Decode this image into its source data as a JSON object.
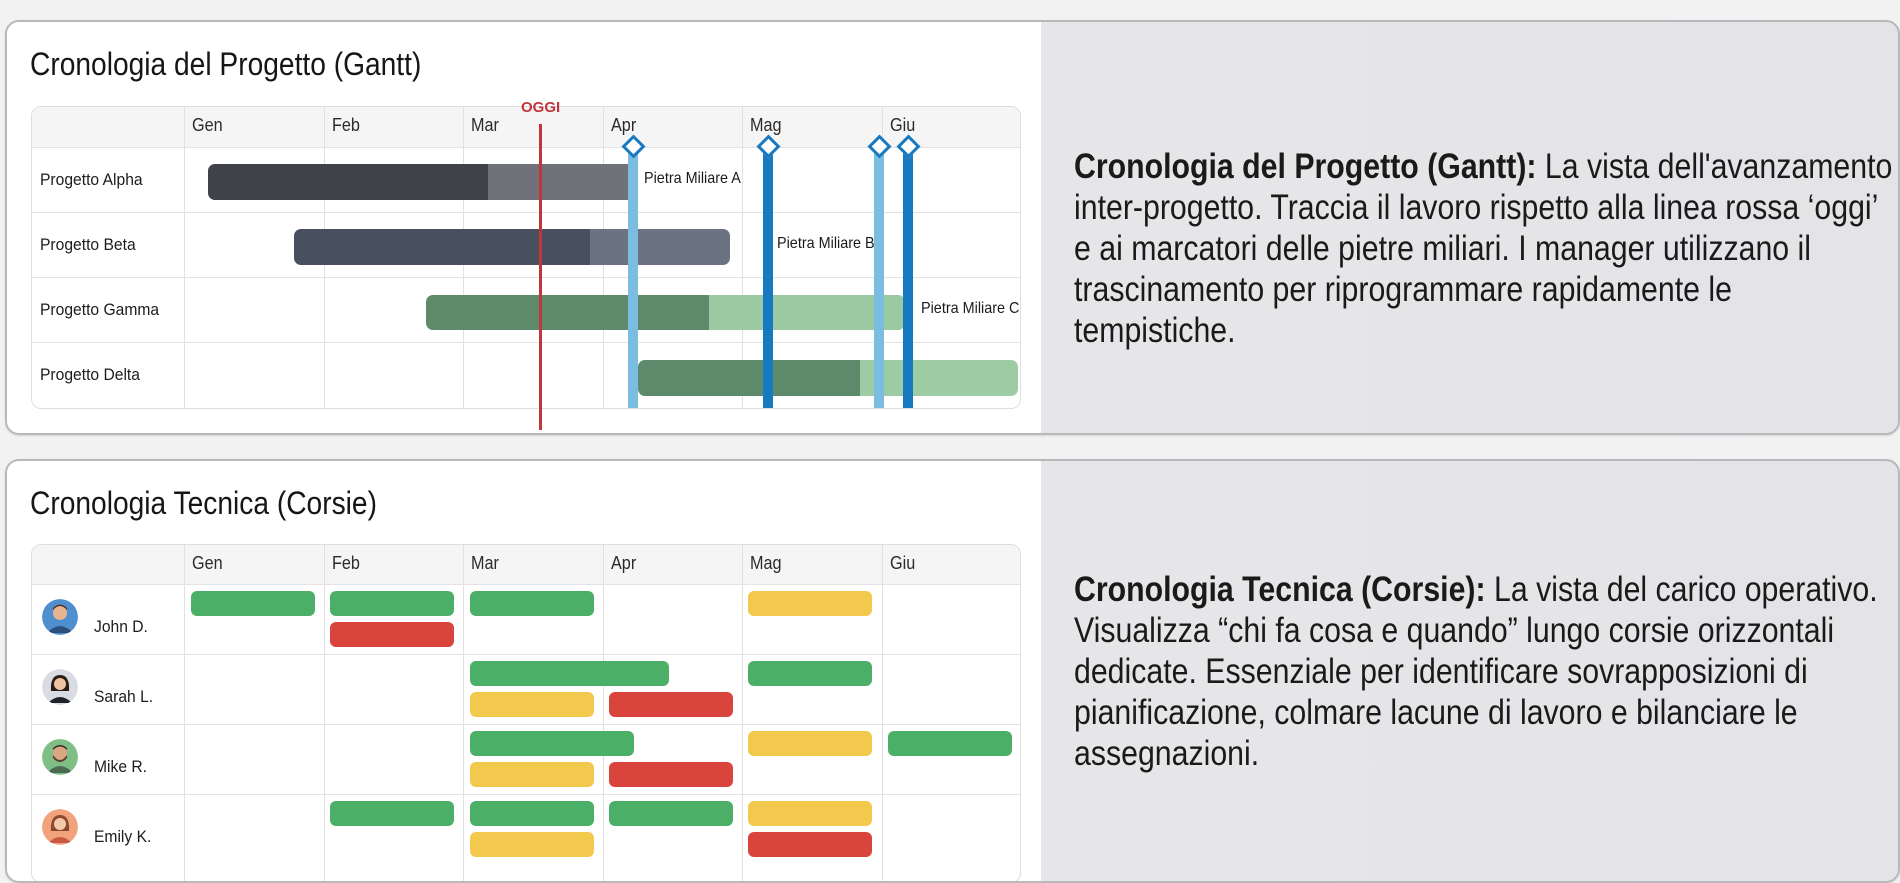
{
  "gantt": {
    "title": "Cronologia del Progetto (Gantt)",
    "today_label": "OGGI",
    "months": [
      "Gen",
      "Feb",
      "Mar",
      "Apr",
      "Mag",
      "Giu"
    ],
    "projects": [
      {
        "name": "Progetto Alpha",
        "start": "Gen",
        "end": "Apr",
        "progress_pct": 65,
        "color": "#3f4248"
      },
      {
        "name": "Progetto Beta",
        "start": "Gen",
        "end": "Mag",
        "progress_pct": 75,
        "color": "#48505f"
      },
      {
        "name": "Progetto Gamma",
        "start": "Feb",
        "end": "Giu",
        "progress_pct": 59,
        "color": "#5d8a6b"
      },
      {
        "name": "Progetto Delta",
        "start": "Apr",
        "end": "Giu",
        "progress_pct": 59,
        "color": "#5e8a6c"
      }
    ],
    "milestones": [
      {
        "label": "Pietra Miliare A",
        "month": "Apr"
      },
      {
        "label": "Pietra Miliare B",
        "month": "Mag"
      },
      {
        "label": "Pietra Miliare C",
        "month": "Giu"
      }
    ],
    "description_bold": "Cronologia del Progetto (Gantt):",
    "description_text": " La vista dell'avanzamento inter-progetto. Traccia il lavoro rispetto alla linea rossa ‘oggi’ e ai marcatori delle pietre miliari. I manager utilizzano il trascinamento per riprogrammare rapidamente le tempistiche."
  },
  "lanes": {
    "title": "Cronologia Tecnica (Corsie)",
    "months": [
      "Gen",
      "Feb",
      "Mar",
      "Apr",
      "Mag",
      "Giu"
    ],
    "people": [
      {
        "name": "John D.",
        "avatar": "person-avatar-male"
      },
      {
        "name": "Sarah L.",
        "avatar": "person-avatar-female"
      },
      {
        "name": "Mike R.",
        "avatar": "person-avatar-male"
      },
      {
        "name": "Emily K.",
        "avatar": "person-avatar-female"
      }
    ],
    "status_colors": {
      "green": "#4caf68",
      "yellow": "#f2c94c",
      "red": "#d9443d"
    },
    "description_bold": "Cronologia Tecnica (Corsie):",
    "description_text": " La vista del carico operativo. Visualizza “chi fa cosa e quando” lungo corsie orizzontali dedicate. Essenziale per identificare sovrapposizioni di pianificazione, colmare lacune di lavoro e bilanciare le assegnazioni."
  }
}
